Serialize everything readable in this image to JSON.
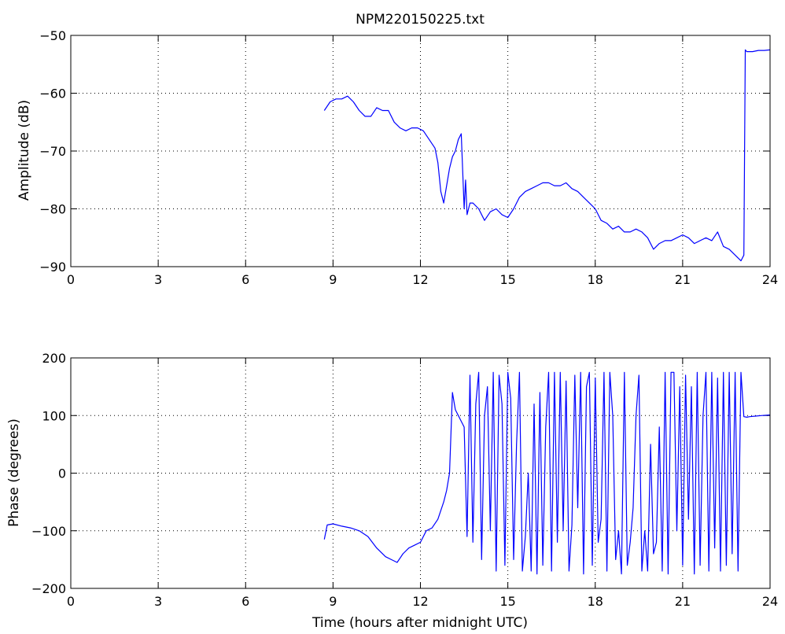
{
  "chart_data": [
    {
      "type": "line",
      "title": "NPM220150225.txt",
      "xlabel": "",
      "ylabel": "Amplitude (dB)",
      "xlim": [
        0,
        24
      ],
      "ylim": [
        -90,
        -50
      ],
      "xticks": [
        0,
        3,
        6,
        9,
        12,
        15,
        18,
        21,
        24
      ],
      "yticks": [
        -90,
        -80,
        -70,
        -60,
        -50
      ],
      "grid": "dotted",
      "color": "#0000ff",
      "series": [
        {
          "x": [
            8.7,
            8.9,
            9.1,
            9.3,
            9.5,
            9.7,
            9.9,
            10.1,
            10.3,
            10.5,
            10.7,
            10.9,
            11.1,
            11.3,
            11.5,
            11.7,
            11.9,
            12.1,
            12.3,
            12.5,
            12.6,
            12.7,
            12.8,
            12.9,
            13.0,
            13.1,
            13.2,
            13.3,
            13.4,
            13.5,
            13.55,
            13.6,
            13.7,
            13.8,
            14.0,
            14.2,
            14.4,
            14.6,
            14.8,
            15.0,
            15.2,
            15.4,
            15.6,
            15.8,
            16.0,
            16.2,
            16.4,
            16.6,
            16.8,
            17.0,
            17.2,
            17.4,
            17.6,
            17.8,
            18.0,
            18.2,
            18.4,
            18.6,
            18.8,
            19.0,
            19.2,
            19.4,
            19.6,
            19.8,
            20.0,
            20.2,
            20.4,
            20.6,
            20.8,
            21.0,
            21.2,
            21.4,
            21.6,
            21.8,
            22.0,
            22.2,
            22.4,
            22.6,
            22.8,
            23.0,
            23.1,
            23.15,
            23.2,
            23.4,
            23.6,
            23.8,
            24.0
          ],
          "y": [
            -63,
            -61.5,
            -61,
            -61,
            -60.5,
            -61.5,
            -63,
            -64,
            -64,
            -62.5,
            -63,
            -63,
            -65,
            -66,
            -66.5,
            -66,
            -66,
            -66.5,
            -68,
            -69.5,
            -72,
            -77,
            -79,
            -76,
            -73,
            -71,
            -70,
            -68,
            -67,
            -80,
            -75,
            -81,
            -79,
            -79,
            -80,
            -82,
            -80.5,
            -80,
            -81,
            -81.5,
            -80,
            -78,
            -77,
            -76.5,
            -76,
            -75.5,
            -75.5,
            -76,
            -76,
            -75.5,
            -76.5,
            -77,
            -78,
            -79,
            -80,
            -82,
            -82.5,
            -83.5,
            -83,
            -84,
            -84,
            -83.5,
            -84,
            -85,
            -87,
            -86,
            -85.5,
            -85.5,
            -85,
            -84.5,
            -85,
            -86,
            -85.5,
            -85,
            -85.5,
            -84,
            -86.5,
            -87,
            -88,
            -89,
            -88,
            -52.5,
            -52.8,
            -52.8,
            -52.6,
            -52.6,
            -52.5
          ]
        }
      ]
    },
    {
      "type": "line",
      "title": "",
      "xlabel": "Time (hours after midnight UTC)",
      "ylabel": "Phase (degrees)",
      "xlim": [
        0,
        24
      ],
      "ylim": [
        -200,
        200
      ],
      "xticks": [
        0,
        3,
        6,
        9,
        12,
        15,
        18,
        21,
        24
      ],
      "yticks": [
        -200,
        -100,
        0,
        100,
        200
      ],
      "grid": "dotted",
      "color": "#0000ff",
      "series": [
        {
          "x": [
            8.7,
            8.8,
            9.0,
            9.3,
            9.6,
            9.9,
            10.2,
            10.5,
            10.8,
            11.0,
            11.2,
            11.4,
            11.6,
            11.8,
            12.0,
            12.2,
            12.4,
            12.6,
            12.8,
            12.9,
            13.0,
            13.1,
            13.2,
            13.3,
            13.4,
            13.5,
            13.6,
            13.7,
            13.8,
            13.9,
            14.0,
            14.1,
            14.2,
            14.3,
            14.4,
            14.5,
            14.6,
            14.7,
            14.8,
            14.9,
            15.0,
            15.1,
            15.2,
            15.3,
            15.4,
            15.5,
            15.6,
            15.7,
            15.8,
            15.9,
            16.0,
            16.1,
            16.2,
            16.3,
            16.4,
            16.5,
            16.6,
            16.7,
            16.8,
            16.9,
            17.0,
            17.1,
            17.2,
            17.3,
            17.4,
            17.5,
            17.6,
            17.7,
            17.8,
            17.9,
            18.0,
            18.1,
            18.2,
            18.3,
            18.4,
            18.5,
            18.6,
            18.7,
            18.8,
            18.9,
            19.0,
            19.1,
            19.2,
            19.3,
            19.4,
            19.5,
            19.6,
            19.7,
            19.8,
            19.9,
            20.0,
            20.1,
            20.2,
            20.3,
            20.4,
            20.5,
            20.6,
            20.7,
            20.8,
            20.9,
            21.0,
            21.1,
            21.2,
            21.3,
            21.4,
            21.5,
            21.6,
            21.7,
            21.8,
            21.9,
            22.0,
            22.1,
            22.2,
            22.3,
            22.4,
            22.5,
            22.6,
            22.7,
            22.8,
            22.9,
            23.0,
            23.1,
            23.2,
            23.3,
            23.5,
            23.7,
            24.0
          ],
          "y": [
            -115,
            -90,
            -88,
            -92,
            -95,
            -100,
            -110,
            -130,
            -145,
            -150,
            -155,
            -140,
            -130,
            -125,
            -120,
            -100,
            -95,
            -80,
            -50,
            -30,
            0,
            140,
            110,
            100,
            90,
            80,
            -110,
            170,
            -120,
            120,
            175,
            -150,
            100,
            150,
            -100,
            175,
            -170,
            170,
            120,
            -160,
            175,
            130,
            -150,
            50,
            175,
            -170,
            -110,
            0,
            -170,
            120,
            -175,
            140,
            -160,
            80,
            175,
            -170,
            175,
            -120,
            175,
            -100,
            160,
            -170,
            -90,
            170,
            -60,
            175,
            -175,
            150,
            175,
            -160,
            165,
            -120,
            -80,
            175,
            -170,
            175,
            100,
            -150,
            -100,
            -175,
            175,
            -160,
            -120,
            -60,
            100,
            170,
            -170,
            -100,
            -170,
            50,
            -140,
            -120,
            80,
            -170,
            175,
            -175,
            175,
            175,
            -100,
            150,
            -160,
            170,
            -80,
            150,
            -175,
            175,
            -160,
            100,
            175,
            -170,
            175,
            -130,
            165,
            -170,
            175,
            -160,
            175,
            -140,
            175,
            -170,
            175,
            98,
            97,
            98,
            99,
            100,
            101
          ]
        }
      ]
    }
  ]
}
